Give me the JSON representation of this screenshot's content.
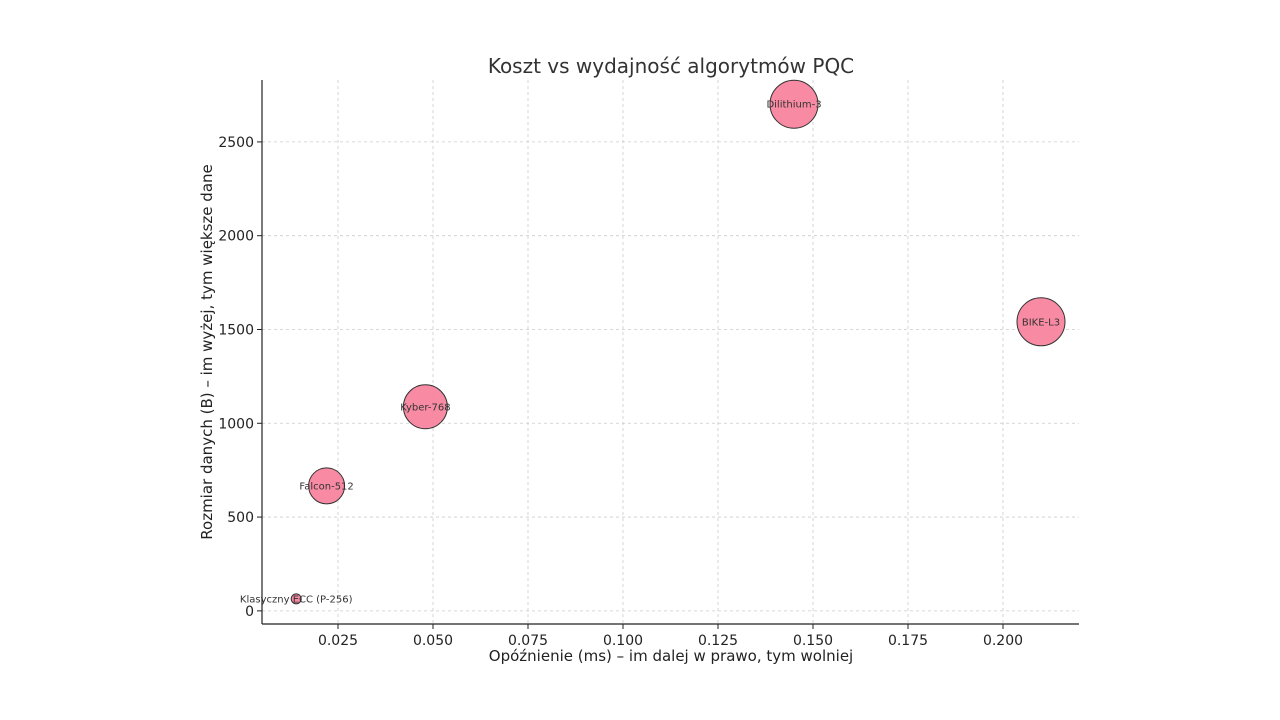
{
  "chart_data": {
    "type": "scatter",
    "title": "Koszt vs wydajność algorytmów PQC",
    "xlabel": "Opóźnienie (ms) – im dalej w prawo, tym wolniej",
    "ylabel": "Rozmiar danych (B) – im wyżej, tym większe dane",
    "xlim": [
      0.005,
      0.22
    ],
    "ylim": [
      -70,
      2830
    ],
    "x_ticks": [
      0.025,
      0.05,
      0.075,
      0.1,
      0.125,
      0.15,
      0.175,
      0.2
    ],
    "x_tick_labels": [
      "0.025",
      "0.050",
      "0.075",
      "0.100",
      "0.125",
      "0.150",
      "0.175",
      "0.200"
    ],
    "y_ticks": [
      0,
      500,
      1000,
      1500,
      2000,
      2500
    ],
    "y_tick_labels": [
      "0",
      "500",
      "1000",
      "1500",
      "2000",
      "2500"
    ],
    "grid": true,
    "marker_color": "#f7819b",
    "points": [
      {
        "label": "Klasyczny ECC (P-256)",
        "x": 0.014,
        "y": 64,
        "size": 5
      },
      {
        "label": "Falcon-512",
        "x": 0.022,
        "y": 666,
        "size": 18
      },
      {
        "label": "Kyber-768",
        "x": 0.048,
        "y": 1088,
        "size": 22
      },
      {
        "label": "Dilithium-3",
        "x": 0.145,
        "y": 2701,
        "size": 24
      },
      {
        "label": "BIKE-L3",
        "x": 0.21,
        "y": 1541,
        "size": 24
      }
    ]
  }
}
